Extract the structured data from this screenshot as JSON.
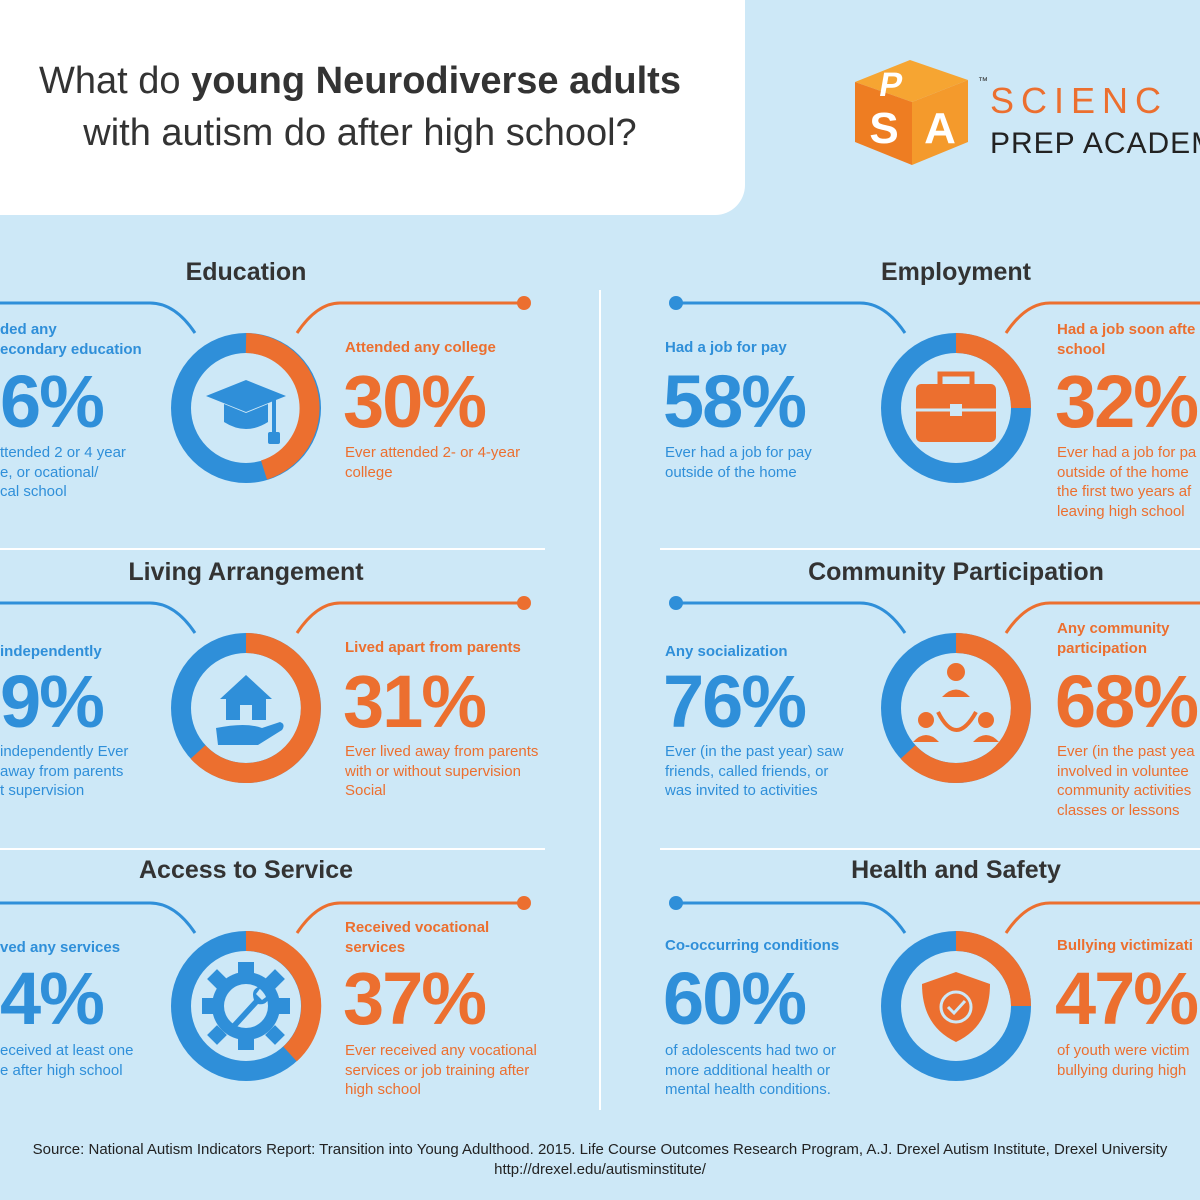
{
  "header": {
    "title_pre": "What do ",
    "title_bold": "young Neurodiverse adults",
    "title_line2": "with autism do after high school?"
  },
  "logo": {
    "cube_letters": [
      "P",
      "S",
      "A"
    ],
    "trademark": "™",
    "line1": "SCIENC",
    "line2": "PREP ACADEM"
  },
  "colors": {
    "blue": "#2f8fd9",
    "orange": "#ec6f2f",
    "background": "#cde8f7"
  },
  "sections": {
    "education": {
      "title": "Education",
      "icon": "graduation-cap-icon",
      "left": {
        "label_l1": "ded any",
        "label_l2": "econdary education",
        "value": "6%",
        "desc_l1": "ttended 2 or 4 year",
        "desc_l2": "e, or ocational/",
        "desc_l3": "cal school"
      },
      "right": {
        "label_l1": "Attended any college",
        "value": "30%",
        "desc_l1": "Ever attended 2- or 4-year",
        "desc_l2": "college"
      }
    },
    "employment": {
      "title": "Employment",
      "icon": "briefcase-icon",
      "left": {
        "label_l1": "Had a job for pay",
        "value": "58%",
        "desc_l1": "Ever had a job for pay",
        "desc_l2": "outside of the home"
      },
      "right": {
        "label_l1": "Had a job soon afte",
        "label_l2": "school",
        "value": "32%",
        "desc_l1": "Ever had a job for pa",
        "desc_l2": "outside of the home",
        "desc_l3": "the first two years af",
        "desc_l4": "leaving high school"
      }
    },
    "living": {
      "title": "Living Arrangement",
      "icon": "house-in-hand-icon",
      "left": {
        "label_l1": "independently",
        "value": "9%",
        "desc_l1": "independently Ever",
        "desc_l2": "away from parents",
        "desc_l3": "t supervision"
      },
      "right": {
        "label_l1": "Lived apart from parents",
        "value": "31%",
        "desc_l1": "Ever lived away from parents",
        "desc_l2": "with or without supervision",
        "desc_l3": "Social"
      }
    },
    "community": {
      "title": "Community Participation",
      "icon": "community-circle-icon",
      "left": {
        "label_l1": "Any socialization",
        "value": "76%",
        "desc_l1": "Ever (in the past year) saw",
        "desc_l2": "friends, called friends, or",
        "desc_l3": "was invited to activities"
      },
      "right": {
        "label_l1": "Any community",
        "label_l2": "participation",
        "value": "68%",
        "desc_l1": "Ever (in the past yea",
        "desc_l2": "involved in voluntee",
        "desc_l3": "community activities",
        "desc_l4": "classes or lessons"
      }
    },
    "access": {
      "title": "Access to Service",
      "icon": "gear-wrench-icon",
      "left": {
        "label_l1": "ved any services",
        "value": "4%",
        "desc_l1": "eceived at least one",
        "desc_l2": "e after high school"
      },
      "right": {
        "label_l1": "Received vocational",
        "label_l2": "services",
        "value": "37%",
        "desc_l1": "Ever received any vocational",
        "desc_l2": "services or job training after",
        "desc_l3": "high school"
      }
    },
    "health": {
      "title": "Health and Safety",
      "icon": "shield-check-icon",
      "left": {
        "label_l1": "Co-occurring conditions",
        "value": "60%",
        "desc_l1": "of adolescents had two or",
        "desc_l2": "more additional health or",
        "desc_l3": "mental health conditions."
      },
      "right": {
        "label_l1": "Bullying victimizati",
        "value": "47%",
        "desc_l1": "of youth were victim",
        "desc_l2": "bullying during high"
      }
    }
  },
  "source": {
    "line1": "Source: National Autism Indicators Report: Transition into Young Adulthood. 2015. Life Course Outcomes Research Program, A.J. Drexel Autism Institute, Drexel University",
    "line2": "http://drexel.edu/autisminstitute/"
  }
}
